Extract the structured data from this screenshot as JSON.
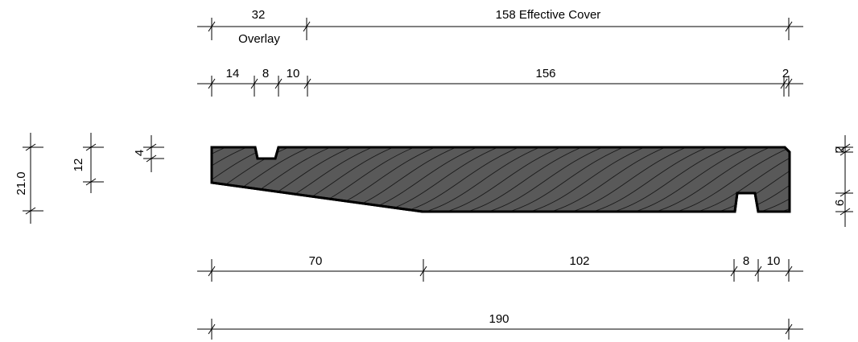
{
  "colors": {
    "profile_fill": "#595959",
    "line": "#000000",
    "background": "#ffffff"
  },
  "dimensions": {
    "top_row1": {
      "overlay_width": "32",
      "overlay_label": "Overlay",
      "effective_cover": "158 Effective Cover"
    },
    "top_row2": {
      "a": "14",
      "b": "8",
      "c": "10",
      "d": "156",
      "e": "2"
    },
    "bottom_row1": {
      "a": "70",
      "b": "102",
      "c": "8",
      "d": "10"
    },
    "bottom_row2": {
      "total": "190"
    },
    "left": {
      "total_height": "21.0",
      "mid_height": "12",
      "groove_depth": "4"
    },
    "right": {
      "chamfer": "2",
      "slot_depth": "6"
    }
  }
}
